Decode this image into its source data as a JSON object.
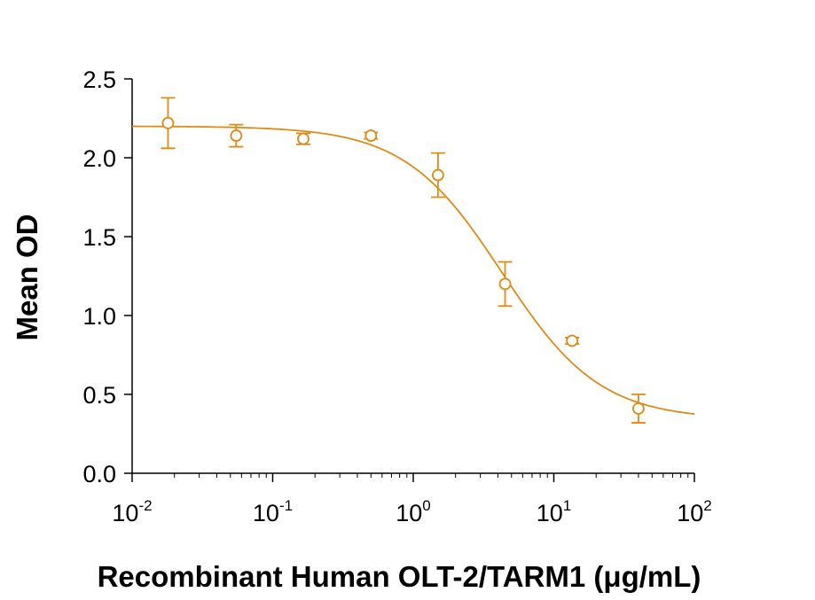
{
  "chart_data": {
    "type": "scatter",
    "title": "",
    "xlabel": "Recombinant Human OLT-2/TARM1 (μg/mL)",
    "ylabel": "Mean OD",
    "x_scale": "log",
    "xlim": [
      0.01,
      100
    ],
    "ylim": [
      0.0,
      2.5
    ],
    "y_ticks": [
      "0.0",
      "0.5",
      "1.0",
      "1.5",
      "2.0",
      "2.5"
    ],
    "x_ticks": [
      {
        "base": "10",
        "exp": "-2",
        "value": 0.01
      },
      {
        "base": "10",
        "exp": "-1",
        "value": 0.1
      },
      {
        "base": "10",
        "exp": "0",
        "value": 1
      },
      {
        "base": "10",
        "exp": "1",
        "value": 10
      },
      {
        "base": "10",
        "exp": "2",
        "value": 100
      }
    ],
    "color": "#E08A16",
    "grid": false,
    "legend": "none",
    "series": [
      {
        "points": [
          {
            "x": 0.018,
            "y": 2.22,
            "err": 0.16
          },
          {
            "x": 0.055,
            "y": 2.14,
            "err": 0.07
          },
          {
            "x": 0.165,
            "y": 2.12,
            "err": 0.035
          },
          {
            "x": 0.5,
            "y": 2.14,
            "err": 0.02
          },
          {
            "x": 1.5,
            "y": 1.89,
            "err": 0.14
          },
          {
            "x": 4.5,
            "y": 1.2,
            "err": 0.14
          },
          {
            "x": 13.5,
            "y": 0.84,
            "err": 0.02
          },
          {
            "x": 40,
            "y": 0.41,
            "err": 0.09
          }
        ],
        "fit": {
          "model": "4PL",
          "top": 2.2,
          "bottom": 0.34,
          "ec50": 4.3,
          "hill": 1.25
        }
      }
    ]
  }
}
